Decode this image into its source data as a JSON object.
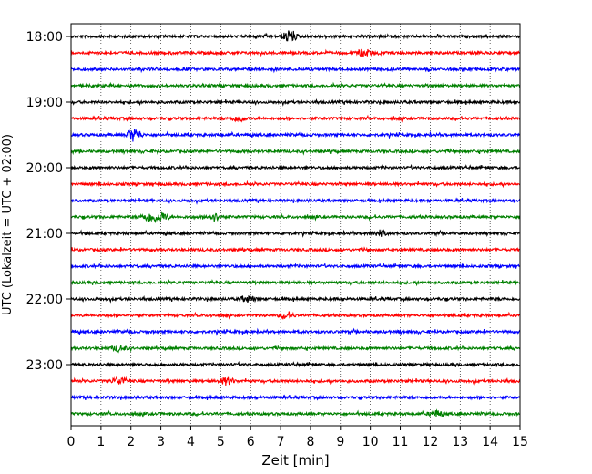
{
  "chart_data": {
    "type": "line",
    "title": "",
    "xlabel": "Zeit  [min]",
    "ylabel": "UTC (Lokalzeit = UTC + 02:00)",
    "xlim": [
      0,
      15
    ],
    "x_ticks": [
      0,
      1,
      2,
      3,
      4,
      5,
      6,
      7,
      8,
      9,
      10,
      11,
      12,
      13,
      14,
      15
    ],
    "x_tick_labels": [
      "0",
      "1",
      "2",
      "3",
      "4",
      "5",
      "6",
      "7",
      "8",
      "9",
      "10",
      "11",
      "12",
      "13",
      "14",
      "15"
    ],
    "y_tick_labels": [
      "18:00",
      "19:00",
      "20:00",
      "21:00",
      "22:00",
      "23:00"
    ],
    "grid": "vertical-dotted",
    "trace_minutes": 15,
    "traces": [
      {
        "start": "18:00",
        "color": "#000000"
      },
      {
        "start": "18:15",
        "color": "#ff0000"
      },
      {
        "start": "18:30",
        "color": "#0000ff"
      },
      {
        "start": "18:45",
        "color": "#008000"
      },
      {
        "start": "19:00",
        "color": "#000000"
      },
      {
        "start": "19:15",
        "color": "#ff0000"
      },
      {
        "start": "19:30",
        "color": "#0000ff"
      },
      {
        "start": "19:45",
        "color": "#008000"
      },
      {
        "start": "20:00",
        "color": "#000000"
      },
      {
        "start": "20:15",
        "color": "#ff0000"
      },
      {
        "start": "20:30",
        "color": "#0000ff"
      },
      {
        "start": "20:45",
        "color": "#008000"
      },
      {
        "start": "21:00",
        "color": "#000000"
      },
      {
        "start": "21:15",
        "color": "#ff0000"
      },
      {
        "start": "21:30",
        "color": "#0000ff"
      },
      {
        "start": "21:45",
        "color": "#008000"
      },
      {
        "start": "22:00",
        "color": "#000000"
      },
      {
        "start": "22:15",
        "color": "#ff0000"
      },
      {
        "start": "22:30",
        "color": "#0000ff"
      },
      {
        "start": "22:45",
        "color": "#008000"
      },
      {
        "start": "23:00",
        "color": "#000000"
      },
      {
        "start": "23:15",
        "color": "#ff0000"
      },
      {
        "start": "23:30",
        "color": "#0000ff"
      },
      {
        "start": "23:45",
        "color": "#008000"
      }
    ],
    "bursts": [
      {
        "trace": 0,
        "x": 7.3,
        "amp": 6
      },
      {
        "trace": 1,
        "x": 9.8,
        "amp": 4
      },
      {
        "trace": 5,
        "x": 5.6,
        "amp": 3
      },
      {
        "trace": 6,
        "x": 2.1,
        "amp": 7
      },
      {
        "trace": 11,
        "x": 2.6,
        "amp": 5
      },
      {
        "trace": 11,
        "x": 3.0,
        "amp": 5
      },
      {
        "trace": 11,
        "x": 4.8,
        "amp": 4
      },
      {
        "trace": 12,
        "x": 10.3,
        "amp": 3
      },
      {
        "trace": 16,
        "x": 5.9,
        "amp": 3
      },
      {
        "trace": 17,
        "x": 7.2,
        "amp": 3
      },
      {
        "trace": 19,
        "x": 1.6,
        "amp": 3
      },
      {
        "trace": 21,
        "x": 1.6,
        "amp": 4
      },
      {
        "trace": 21,
        "x": 5.2,
        "amp": 4
      },
      {
        "trace": 23,
        "x": 12.2,
        "amp": 3
      }
    ]
  }
}
